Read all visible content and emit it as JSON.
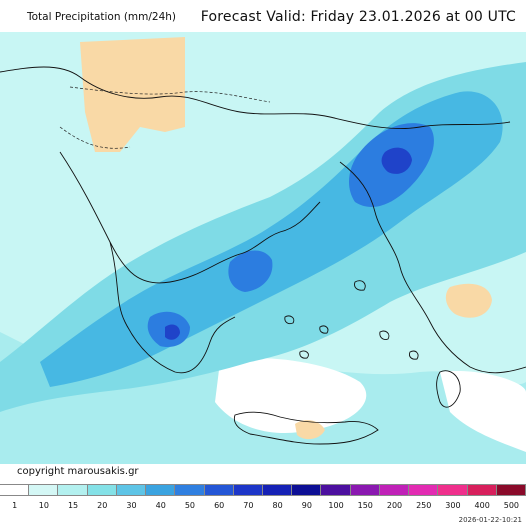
{
  "header": {
    "title": "Total Precipitation (mm/24h)",
    "forecast": "Forecast Valid:  Friday 23.01.2026 at 00 UTC"
  },
  "footer": {
    "copyright": "copyright marousakis.gr",
    "stamp": "2026-01-22-10:21"
  },
  "legend": {
    "ticks": [
      "1",
      "10",
      "15",
      "20",
      "30",
      "40",
      "50",
      "60",
      "70",
      "80",
      "90",
      "100",
      "150",
      "200",
      "250",
      "300",
      "400",
      "500"
    ],
    "colors": [
      "#ffffff",
      "#d4f7f5",
      "#b3f0ef",
      "#84e1e7",
      "#5ec4e6",
      "#3aa3e0",
      "#2f7fe0",
      "#2456d6",
      "#1d36c8",
      "#1521b5",
      "#0d0f95",
      "#4c109f",
      "#8a18b0",
      "#c021b8",
      "#e22bb2",
      "#ef2f8c",
      "#d71f5c",
      "#8a0a2a"
    ]
  },
  "map": {
    "colors": {
      "background": "#c8f6f4",
      "sea_light": "#a9ecee",
      "dry_land": "#f9d9a6",
      "lowest": "#ffffff",
      "light": "#7fdbe6",
      "medium": "#47b8e3",
      "heavy": "#2c7de0",
      "very_heavy": "#1f43c9"
    }
  }
}
